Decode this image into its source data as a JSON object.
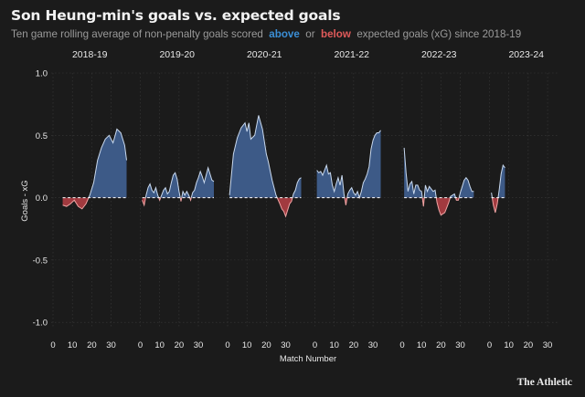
{
  "title": "Son Heung-min's goals vs. expected goals",
  "subtitle": {
    "pre": "Ten game rolling average of non-penalty goals scored",
    "above": "above",
    "or": "or",
    "below": "below",
    "post": "expected goals (xG) since 2018-19"
  },
  "brand": "The Athletic",
  "colors": {
    "background": "#1b1b1b",
    "above_fill": "#3d5a87",
    "below_fill": "#a13a3f",
    "above_line": "#c9d9ee",
    "below_line": "#f0a3a3",
    "grid": "#3a3a3a",
    "text": "#e8e8e8",
    "muted": "#9a9a9a"
  },
  "chart_data": {
    "type": "area",
    "title": "Son Heung-min's goals vs. expected goals",
    "ylabel": "Goals - xG",
    "xlabel": "Match Number",
    "ylim": [
      -1.05,
      1.0
    ],
    "yticks": [
      "1.0",
      "0.5",
      "0.0",
      "-0.5",
      "-1.0"
    ],
    "ytick_values": [
      1.0,
      0.5,
      0.0,
      -0.5,
      -1.0
    ],
    "xlim": [
      0,
      38
    ],
    "xticks": [
      "0",
      "10",
      "20",
      "30"
    ],
    "xtick_values": [
      0,
      10,
      20,
      30
    ],
    "grid": true,
    "series": [
      {
        "name": "2018-19",
        "points": [
          [
            5,
            -0.06
          ],
          [
            7,
            -0.07
          ],
          [
            9,
            -0.05
          ],
          [
            11,
            -0.02
          ],
          [
            13,
            -0.07
          ],
          [
            15,
            -0.09
          ],
          [
            17,
            -0.05
          ],
          [
            19,
            0.02
          ],
          [
            21,
            0.12
          ],
          [
            23,
            0.3
          ],
          [
            25,
            0.4
          ],
          [
            27,
            0.47
          ],
          [
            29,
            0.5
          ],
          [
            31,
            0.44
          ],
          [
            33,
            0.55
          ],
          [
            35,
            0.52
          ],
          [
            37,
            0.42
          ],
          [
            38,
            0.3
          ]
        ]
      },
      {
        "name": "2019-20",
        "points": [
          [
            1,
            -0.02
          ],
          [
            2,
            -0.06
          ],
          [
            3,
            0.02
          ],
          [
            4,
            0.08
          ],
          [
            5,
            0.11
          ],
          [
            6,
            0.06
          ],
          [
            7,
            0.04
          ],
          [
            8,
            0.08
          ],
          [
            9,
            0.02
          ],
          [
            10,
            -0.02
          ],
          [
            11,
            0.02
          ],
          [
            12,
            0.06
          ],
          [
            13,
            0.08
          ],
          [
            14,
            0.03
          ],
          [
            15,
            0.05
          ],
          [
            16,
            0.12
          ],
          [
            17,
            0.18
          ],
          [
            18,
            0.2
          ],
          [
            19,
            0.15
          ],
          [
            20,
            0.05
          ],
          [
            21,
            -0.03
          ],
          [
            22,
            0.05
          ],
          [
            23,
            0.02
          ],
          [
            24,
            0.05
          ],
          [
            25,
            0.02
          ],
          [
            26,
            -0.02
          ],
          [
            27,
            0.04
          ],
          [
            28,
            0.06
          ],
          [
            29,
            0.12
          ],
          [
            30,
            0.16
          ],
          [
            31,
            0.21
          ],
          [
            32,
            0.17
          ],
          [
            33,
            0.12
          ],
          [
            34,
            0.18
          ],
          [
            35,
            0.24
          ],
          [
            36,
            0.19
          ],
          [
            37,
            0.14
          ],
          [
            38,
            0.13
          ]
        ]
      },
      {
        "name": "2020-21",
        "points": [
          [
            1,
            0.02
          ],
          [
            3,
            0.35
          ],
          [
            5,
            0.48
          ],
          [
            7,
            0.56
          ],
          [
            9,
            0.6
          ],
          [
            10,
            0.53
          ],
          [
            11,
            0.6
          ],
          [
            12,
            0.47
          ],
          [
            14,
            0.5
          ],
          [
            16,
            0.66
          ],
          [
            18,
            0.55
          ],
          [
            20,
            0.35
          ],
          [
            21,
            0.29
          ],
          [
            23,
            0.14
          ],
          [
            25,
            0.02
          ],
          [
            27,
            -0.05
          ],
          [
            28,
            -0.09
          ],
          [
            29,
            -0.11
          ],
          [
            30,
            -0.15
          ],
          [
            31,
            -0.1
          ],
          [
            32,
            -0.05
          ],
          [
            33,
            -0.03
          ],
          [
            34,
            0.03
          ],
          [
            35,
            0.06
          ],
          [
            36,
            0.12
          ],
          [
            37,
            0.15
          ],
          [
            38,
            0.16
          ]
        ]
      },
      {
        "name": "2021-22",
        "points": [
          [
            1,
            0.22
          ],
          [
            2,
            0.2
          ],
          [
            3,
            0.21
          ],
          [
            4,
            0.18
          ],
          [
            5,
            0.22
          ],
          [
            6,
            0.26
          ],
          [
            7,
            0.19
          ],
          [
            8,
            0.2
          ],
          [
            9,
            0.1
          ],
          [
            10,
            0.05
          ],
          [
            11,
            0.11
          ],
          [
            12,
            0.16
          ],
          [
            13,
            0.1
          ],
          [
            14,
            0.18
          ],
          [
            15,
            0.03
          ],
          [
            16,
            -0.06
          ],
          [
            17,
            0.03
          ],
          [
            18,
            0.06
          ],
          [
            19,
            0.08
          ],
          [
            20,
            0.04
          ],
          [
            21,
            0.02
          ],
          [
            22,
            0.05
          ],
          [
            23,
            0.0
          ],
          [
            24,
            0.05
          ],
          [
            25,
            0.12
          ],
          [
            26,
            0.15
          ],
          [
            27,
            0.19
          ],
          [
            28,
            0.25
          ],
          [
            29,
            0.39
          ],
          [
            30,
            0.46
          ],
          [
            31,
            0.5
          ],
          [
            32,
            0.52
          ],
          [
            33,
            0.52
          ],
          [
            34,
            0.54
          ]
        ]
      },
      {
        "name": "2022-23",
        "points": [
          [
            1,
            0.4
          ],
          [
            2,
            0.2
          ],
          [
            3,
            0.05
          ],
          [
            4,
            0.11
          ],
          [
            5,
            0.13
          ],
          [
            6,
            0.03
          ],
          [
            7,
            0.1
          ],
          [
            8,
            0.1
          ],
          [
            9,
            0.06
          ],
          [
            10,
            0.05
          ],
          [
            11,
            -0.07
          ],
          [
            12,
            0.1
          ],
          [
            13,
            0.05
          ],
          [
            14,
            0.09
          ],
          [
            15,
            0.07
          ],
          [
            16,
            0.05
          ],
          [
            17,
            0.06
          ],
          [
            18,
            -0.04
          ],
          [
            19,
            -0.1
          ],
          [
            20,
            -0.14
          ],
          [
            21,
            -0.13
          ],
          [
            22,
            -0.12
          ],
          [
            23,
            -0.08
          ],
          [
            24,
            -0.04
          ],
          [
            25,
            0.01
          ],
          [
            26,
            0.02
          ],
          [
            27,
            0.03
          ],
          [
            28,
            -0.02
          ],
          [
            29,
            -0.02
          ],
          [
            30,
            0.04
          ],
          [
            31,
            0.09
          ],
          [
            32,
            0.14
          ],
          [
            33,
            0.16
          ],
          [
            34,
            0.14
          ],
          [
            35,
            0.09
          ],
          [
            36,
            0.05
          ],
          [
            37,
            0.05
          ]
        ]
      },
      {
        "name": "2023-24",
        "points": [
          [
            1,
            0.04
          ],
          [
            2,
            -0.06
          ],
          [
            3,
            -0.12
          ],
          [
            4,
            -0.05
          ],
          [
            5,
            0.06
          ],
          [
            6,
            0.19
          ],
          [
            7,
            0.26
          ],
          [
            8,
            0.24
          ]
        ]
      }
    ]
  }
}
